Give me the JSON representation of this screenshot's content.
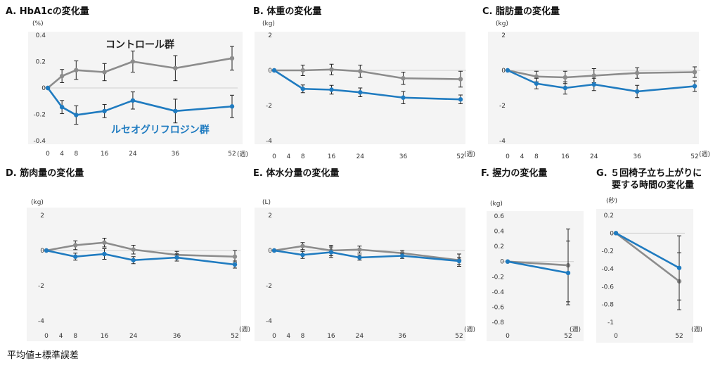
{
  "footnote": "平均値±標準誤差",
  "colors": {
    "control": "#8c8c8c",
    "treatment": "#1f7bc0",
    "errorbar": "#222222"
  },
  "chart_data": [
    {
      "type": "line",
      "title": "A. HbA1cの変化量",
      "unit": "(%)",
      "xunit": "(週)",
      "x": [
        0,
        4,
        8,
        16,
        24,
        36,
        52
      ],
      "xticks": [
        "0",
        "4",
        "8",
        "16",
        "24",
        "36",
        "52"
      ],
      "ylim": [
        -0.4,
        0.4
      ],
      "yticks": [
        "0.4",
        "0.2",
        "0",
        "-0.2",
        "-0.4"
      ],
      "series": [
        {
          "name": "コントロール群",
          "key": "control",
          "values": [
            0,
            0.09,
            0.135,
            0.12,
            0.2,
            0.15,
            0.225
          ],
          "err": [
            0,
            0.05,
            0.07,
            0.065,
            0.08,
            0.095,
            0.09
          ]
        },
        {
          "name": "ルセオグリフロジン群",
          "key": "treatment",
          "values": [
            0,
            -0.145,
            -0.205,
            -0.175,
            -0.095,
            -0.175,
            -0.14
          ],
          "err": [
            0,
            0.05,
            0.07,
            0.05,
            0.065,
            0.09,
            0.085
          ]
        }
      ]
    },
    {
      "type": "line",
      "title": "B. 体重の変化量",
      "unit": "(kg)",
      "xunit": "(週)",
      "x": [
        0,
        4,
        8,
        16,
        24,
        36,
        52
      ],
      "xticks": [
        "0",
        "4",
        "8",
        "16",
        "24",
        "36",
        "52"
      ],
      "ylim": [
        -4,
        2
      ],
      "yticks": [
        "2",
        "0",
        "-2",
        "-4"
      ],
      "series": [
        {
          "key": "control",
          "values": [
            0,
            null,
            0.0,
            0.05,
            -0.05,
            -0.45,
            -0.5
          ],
          "err": [
            0,
            0,
            0.3,
            0.3,
            0.35,
            0.35,
            0.45
          ]
        },
        {
          "key": "treatment",
          "values": [
            0,
            null,
            -1.05,
            -1.1,
            -1.25,
            -1.55,
            -1.65
          ],
          "err": [
            0,
            0,
            0.22,
            0.25,
            0.25,
            0.35,
            0.25
          ]
        }
      ]
    },
    {
      "type": "line",
      "title": "C. 脂肪量の変化量",
      "unit": "(kg)",
      "xunit": "(週)",
      "x": [
        0,
        4,
        8,
        16,
        24,
        36,
        52
      ],
      "xticks": [
        "0",
        "4",
        "8",
        "16",
        "24",
        "36",
        "52"
      ],
      "ylim": [
        -4,
        2
      ],
      "yticks": [
        "2",
        "0",
        "-2",
        "-4"
      ],
      "series": [
        {
          "key": "control",
          "values": [
            0,
            null,
            -0.35,
            -0.4,
            -0.3,
            -0.15,
            -0.1
          ],
          "err": [
            0,
            0,
            0.3,
            0.35,
            0.4,
            0.3,
            0.3
          ]
        },
        {
          "key": "treatment",
          "values": [
            0,
            null,
            -0.75,
            -1.0,
            -0.8,
            -1.2,
            -0.9
          ],
          "err": [
            0,
            0,
            0.3,
            0.35,
            0.35,
            0.35,
            0.3
          ]
        }
      ]
    },
    {
      "type": "line",
      "title": "D. 筋肉量の変化量",
      "unit": "(kg)",
      "xunit": "(週)",
      "x": [
        0,
        4,
        8,
        16,
        24,
        36,
        52
      ],
      "xticks": [
        "0",
        "4",
        "8",
        "16",
        "24",
        "36",
        "52"
      ],
      "ylim": [
        -4,
        2
      ],
      "yticks": [
        "2",
        "0",
        "-2",
        "-4"
      ],
      "series": [
        {
          "key": "control",
          "values": [
            0,
            null,
            0.3,
            0.45,
            0.05,
            -0.25,
            -0.35
          ],
          "err": [
            0,
            0,
            0.25,
            0.25,
            0.25,
            0.2,
            0.35
          ]
        },
        {
          "key": "treatment",
          "values": [
            0,
            null,
            -0.35,
            -0.2,
            -0.55,
            -0.4,
            -0.8
          ],
          "err": [
            0,
            0,
            0.2,
            0.3,
            0.2,
            0.2,
            0.2
          ]
        }
      ]
    },
    {
      "type": "line",
      "title": "E. 体水分量の変化量",
      "unit": "(L)",
      "xunit": "(週)",
      "x": [
        0,
        4,
        8,
        16,
        24,
        36,
        52
      ],
      "xticks": [
        "0",
        "4",
        "8",
        "16",
        "24",
        "36",
        "52"
      ],
      "ylim": [
        -4,
        2
      ],
      "yticks": [
        "2",
        "0",
        "-2",
        "-4"
      ],
      "series": [
        {
          "key": "control",
          "values": [
            0,
            null,
            0.25,
            0.0,
            0.05,
            -0.15,
            -0.55
          ],
          "err": [
            0,
            0,
            0.2,
            0.3,
            0.2,
            0.15,
            0.35
          ]
        },
        {
          "key": "treatment",
          "values": [
            0,
            null,
            -0.25,
            -0.1,
            -0.4,
            -0.3,
            -0.6
          ],
          "err": [
            0,
            0,
            0.2,
            0.3,
            0.15,
            0.15,
            0.2
          ]
        }
      ]
    },
    {
      "type": "line",
      "title": "F. 握力の変化量",
      "unit": "(kg)",
      "xunit": "(週)",
      "x": [
        0,
        52
      ],
      "xticks": [
        "0",
        "52"
      ],
      "ylim": [
        -0.8,
        0.6
      ],
      "yticks": [
        "0.6",
        "0.4",
        "0.2",
        "0",
        "-0.2",
        "-0.4",
        "-0.6",
        "-0.8"
      ],
      "series": [
        {
          "key": "control",
          "values": [
            0,
            -0.05
          ],
          "err": [
            0,
            0.48
          ]
        },
        {
          "key": "treatment",
          "values": [
            0,
            -0.15
          ],
          "err": [
            0,
            0.42
          ]
        }
      ]
    },
    {
      "type": "line",
      "title": "G. ５回椅子立ち上がりに",
      "title2": "要する時間の変化量",
      "unit": "(秒)",
      "xunit": "(週)",
      "x": [
        0,
        52
      ],
      "xticks": [
        "0",
        "52"
      ],
      "ylim": [
        -1,
        0.2
      ],
      "yticks": [
        "0.2",
        "0",
        "-0.2",
        "-0.4",
        "-0.6",
        "-0.8",
        "-1"
      ],
      "series": [
        {
          "key": "control",
          "values": [
            0,
            -0.54
          ],
          "err": [
            0,
            0.32
          ]
        },
        {
          "key": "treatment",
          "values": [
            0,
            -0.39
          ],
          "err": [
            0,
            0.36
          ]
        }
      ]
    }
  ]
}
